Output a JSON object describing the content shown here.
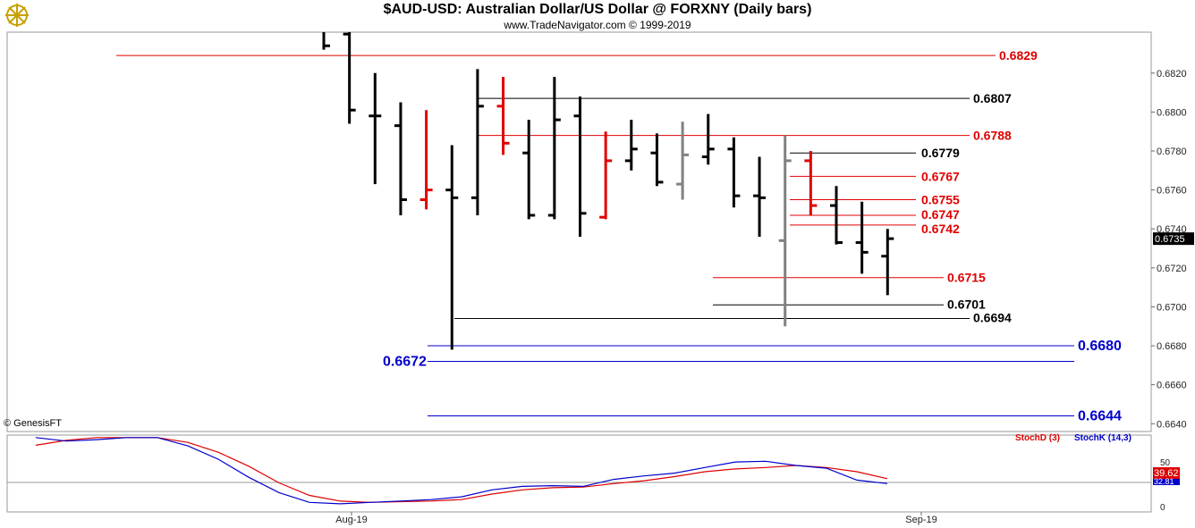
{
  "header": {
    "title": "$AUD-USD:  Australian Dollar/US Dollar @ FORXNY  (Daily bars)",
    "subtitle": "www.TradeNavigator.com © 1999-2019",
    "logo_icon": "ship-wheel-logo-icon"
  },
  "copyright": "© GenesisFT",
  "colors": {
    "bar_black": "#000000",
    "bar_red": "#e00000",
    "bar_gray": "#808080",
    "level_red": "#e00000",
    "level_black": "#000000",
    "level_blue": "#0000cc",
    "stoch_d": "#dd0000",
    "stoch_k": "#0000cc",
    "last_price_bg": "#000000",
    "stoch_d_bg": "#dd0000",
    "stoch_k_bg": "#0000cc"
  },
  "chart_data": {
    "type": "ohlc",
    "title": "$AUD-USD:  Australian Dollar/US Dollar @ FORXNY  (Daily bars)",
    "y_axis": {
      "ylim": [
        0.6636,
        0.6841
      ],
      "ticks": [
        "0.6640",
        "0.6660",
        "0.6680",
        "0.6700",
        "0.6720",
        "0.6740",
        "0.6760",
        "0.6780",
        "0.6800",
        "0.6820"
      ]
    },
    "x_axis": {
      "labels": [
        "Aug-19",
        "Sep-19"
      ]
    },
    "last_price": "0.6735",
    "bars": [
      {
        "o": 0.685,
        "h": 0.6855,
        "l": 0.6832,
        "c": 0.6834,
        "color": "black"
      },
      {
        "o": 0.684,
        "h": 0.6845,
        "l": 0.6794,
        "c": 0.6801,
        "color": "black"
      },
      {
        "o": 0.6798,
        "h": 0.682,
        "l": 0.6763,
        "c": 0.6798,
        "color": "black"
      },
      {
        "o": 0.6793,
        "h": 0.6805,
        "l": 0.6747,
        "c": 0.6755,
        "color": "black"
      },
      {
        "o": 0.6755,
        "h": 0.6801,
        "l": 0.675,
        "c": 0.676,
        "color": "red"
      },
      {
        "o": 0.676,
        "h": 0.6783,
        "l": 0.6678,
        "c": 0.6756,
        "color": "black"
      },
      {
        "o": 0.6756,
        "h": 0.6822,
        "l": 0.6747,
        "c": 0.6803,
        "color": "black"
      },
      {
        "o": 0.6803,
        "h": 0.6818,
        "l": 0.6778,
        "c": 0.6784,
        "color": "red"
      },
      {
        "o": 0.6779,
        "h": 0.6796,
        "l": 0.6745,
        "c": 0.6747,
        "color": "black"
      },
      {
        "o": 0.6747,
        "h": 0.6818,
        "l": 0.6745,
        "c": 0.6796,
        "color": "black"
      },
      {
        "o": 0.6798,
        "h": 0.6808,
        "l": 0.6736,
        "c": 0.6748,
        "color": "black"
      },
      {
        "o": 0.6746,
        "h": 0.679,
        "l": 0.6745,
        "c": 0.6775,
        "color": "red"
      },
      {
        "o": 0.6775,
        "h": 0.6796,
        "l": 0.677,
        "c": 0.6781,
        "color": "black"
      },
      {
        "o": 0.6779,
        "h": 0.6789,
        "l": 0.6762,
        "c": 0.6764,
        "color": "black"
      },
      {
        "o": 0.6763,
        "h": 0.6795,
        "l": 0.6755,
        "c": 0.6778,
        "color": "gray"
      },
      {
        "o": 0.6777,
        "h": 0.6799,
        "l": 0.6773,
        "c": 0.6781,
        "color": "black"
      },
      {
        "o": 0.6781,
        "h": 0.6787,
        "l": 0.6751,
        "c": 0.6757,
        "color": "black"
      },
      {
        "o": 0.6757,
        "h": 0.6777,
        "l": 0.6736,
        "c": 0.6756,
        "color": "black"
      },
      {
        "o": 0.6734,
        "h": 0.6788,
        "l": 0.669,
        "c": 0.6775,
        "color": "gray"
      },
      {
        "o": 0.6775,
        "h": 0.678,
        "l": 0.6747,
        "c": 0.6752,
        "color": "red"
      },
      {
        "o": 0.6752,
        "h": 0.6762,
        "l": 0.6732,
        "c": 0.6733,
        "color": "black"
      },
      {
        "o": 0.6733,
        "h": 0.6754,
        "l": 0.6717,
        "c": 0.6728,
        "color": "black"
      },
      {
        "o": 0.6726,
        "h": 0.674,
        "l": 0.6706,
        "c": 0.6735,
        "color": "black"
      }
    ],
    "levels": [
      {
        "label": "0.6829",
        "value": 0.6829,
        "color": "red"
      },
      {
        "label": "0.6807",
        "value": 0.6807,
        "color": "black"
      },
      {
        "label": "0.6788",
        "value": 0.6788,
        "color": "red"
      },
      {
        "label": "0.6779",
        "value": 0.6779,
        "color": "black"
      },
      {
        "label": "0.6767",
        "value": 0.6767,
        "color": "red"
      },
      {
        "label": "0.6755",
        "value": 0.6755,
        "color": "red"
      },
      {
        "label": "0.6747",
        "value": 0.6747,
        "color": "red"
      },
      {
        "label": "0.6742",
        "value": 0.6742,
        "color": "red"
      },
      {
        "label": "0.6715",
        "value": 0.6715,
        "color": "red"
      },
      {
        "label": "0.6701",
        "value": 0.6701,
        "color": "black"
      },
      {
        "label": "0.6694",
        "value": 0.6694,
        "color": "black"
      },
      {
        "label": "0.6680",
        "value": 0.668,
        "color": "blue"
      },
      {
        "label": "0.6672",
        "value": 0.6672,
        "color": "blue"
      },
      {
        "label": "0.6644",
        "value": 0.6644,
        "color": "blue"
      }
    ],
    "stochastic": {
      "legend_d": "StochD (3)",
      "legend_k": "StochK (14,3)",
      "axis_ticks": [
        "50",
        "0"
      ],
      "ylim": [
        0,
        100
      ],
      "last_d": "39.62",
      "last_k": "32.81",
      "d_values": [
        88,
        95,
        99,
        99,
        99,
        92,
        78,
        58,
        34,
        16,
        8,
        6,
        7,
        8,
        10,
        18,
        24,
        27,
        28,
        33,
        37,
        43,
        50,
        54,
        56,
        59,
        56,
        50,
        40
      ],
      "k_values": [
        99,
        94,
        96,
        99,
        99,
        87,
        68,
        42,
        20,
        6,
        4,
        6,
        8,
        10,
        14,
        24,
        29,
        30,
        29,
        39,
        44,
        48,
        56,
        64,
        65,
        59,
        55,
        38,
        33
      ]
    }
  }
}
